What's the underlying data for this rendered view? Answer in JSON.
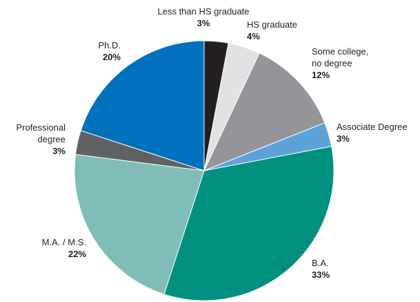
{
  "chart_data": {
    "type": "pie",
    "categories": [
      "Less than HS graduate",
      "HS graduate",
      "Some college, no degree",
      "Associate Degree",
      "B.A.",
      "M.A. / M.S.",
      "Professional degree",
      "Ph.D."
    ],
    "values": [
      3,
      4,
      12,
      3,
      33,
      22,
      3,
      20
    ],
    "value_labels": [
      "3%",
      "4%",
      "12%",
      "3%",
      "33%",
      "22%",
      "3%",
      "20%"
    ],
    "colors": [
      "#231f20",
      "#e1e2e3",
      "#939598",
      "#5da3da",
      "#00907f",
      "#80bcb8",
      "#5f6164",
      "#0071bc"
    ]
  }
}
